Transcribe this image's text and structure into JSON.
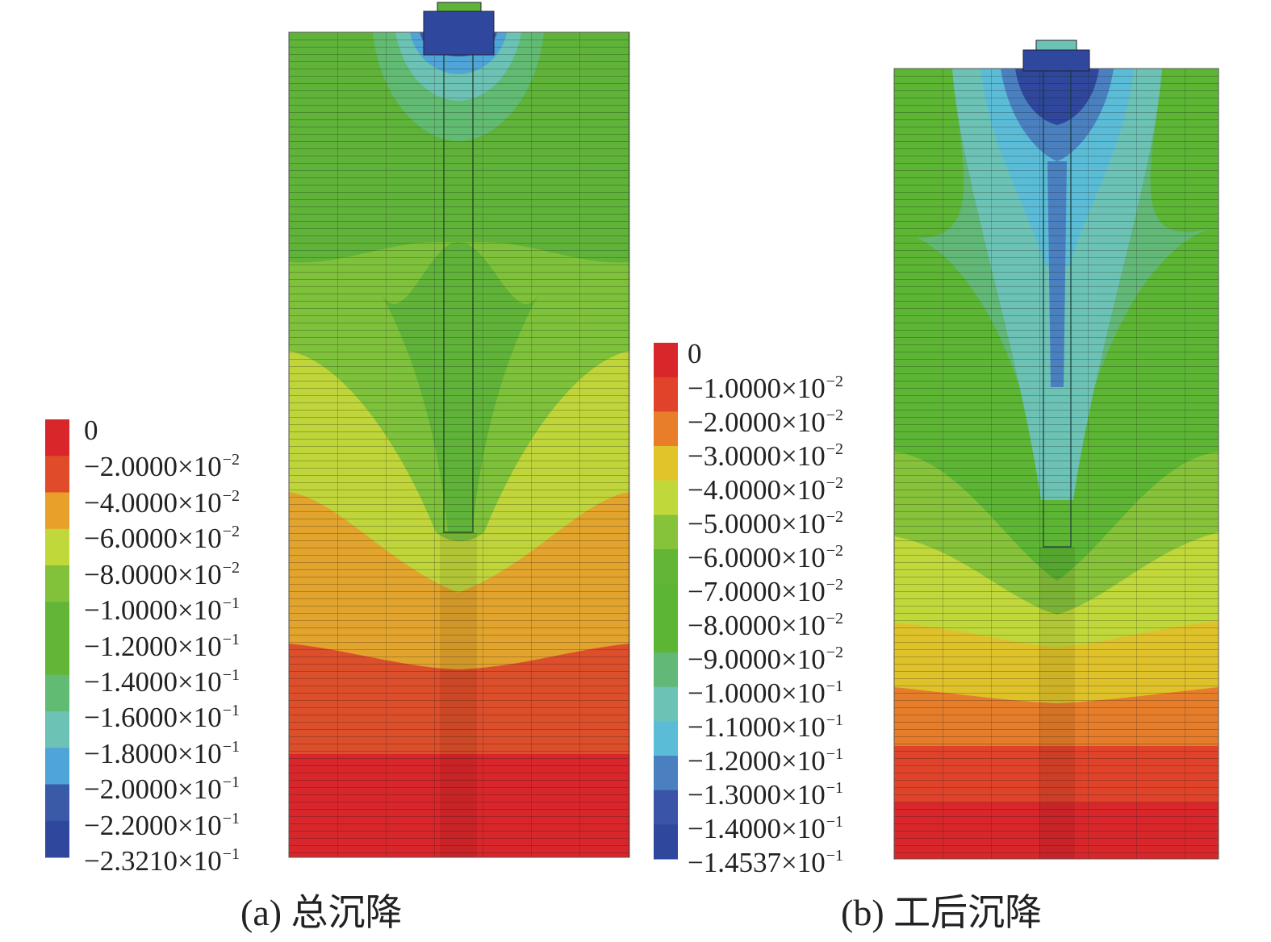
{
  "chart_data": [
    {
      "type": "heatmap",
      "subtype": "fem-contour",
      "title": "(a) 总沉降",
      "legend": {
        "placement": "left",
        "labels": [
          "0",
          "−2.0000×10",
          "−4.0000×10",
          "−6.0000×10",
          "−8.0000×10",
          "−1.0000×10",
          "−1.2000×10",
          "−1.4000×10",
          "−1.6000×10",
          "−1.8000×10",
          "−2.0000×10",
          "−2.2000×10",
          "−2.3210×10"
        ],
        "exponents": [
          "",
          "−2",
          "−2",
          "−2",
          "−2",
          "−1",
          "−1",
          "−1",
          "−1",
          "−1",
          "−1",
          "−1",
          "−1"
        ],
        "levels": [
          0,
          -0.02,
          -0.04,
          -0.06,
          -0.08,
          -0.1,
          -0.12,
          -0.14,
          -0.16,
          -0.18,
          -0.2,
          -0.22,
          -0.2321
        ],
        "colors": [
          "#d9262a",
          "#e04b2a",
          "#e8a02a",
          "#c0d83a",
          "#82c13a",
          "#62b535",
          "#62b535",
          "#62bb72",
          "#6cc2b4",
          "#4fa5d8",
          "#3a5aa8",
          "#2f479c"
        ]
      }
    },
    {
      "type": "heatmap",
      "subtype": "fem-contour",
      "title": "(b) 工后沉降",
      "legend": {
        "placement": "left",
        "labels": [
          "0",
          "−1.0000×10",
          "−2.0000×10",
          "−3.0000×10",
          "−4.0000×10",
          "−5.0000×10",
          "−6.0000×10",
          "−7.0000×10",
          "−8.0000×10",
          "−9.0000×10",
          "−1.0000×10",
          "−1.1000×10",
          "−1.2000×10",
          "−1.3000×10",
          "−1.4000×10",
          "−1.4537×10"
        ],
        "exponents": [
          "",
          "−2",
          "−2",
          "−2",
          "−2",
          "−2",
          "−2",
          "−2",
          "−2",
          "−2",
          "−1",
          "−1",
          "−1",
          "−1",
          "−1",
          "−1"
        ],
        "levels": [
          0,
          -0.01,
          -0.02,
          -0.03,
          -0.04,
          -0.05,
          -0.06,
          -0.07,
          -0.08,
          -0.09,
          -0.1,
          -0.11,
          -0.12,
          -0.13,
          -0.14,
          -0.14537
        ],
        "colors": [
          "#d9262a",
          "#e0432a",
          "#e87d2a",
          "#e0c42a",
          "#c0d83a",
          "#86c23a",
          "#62b535",
          "#5db534",
          "#5db534",
          "#62b877",
          "#6cc2b4",
          "#5bbcd8",
          "#4a80c0",
          "#3a55a8",
          "#2f479c"
        ]
      }
    }
  ]
}
